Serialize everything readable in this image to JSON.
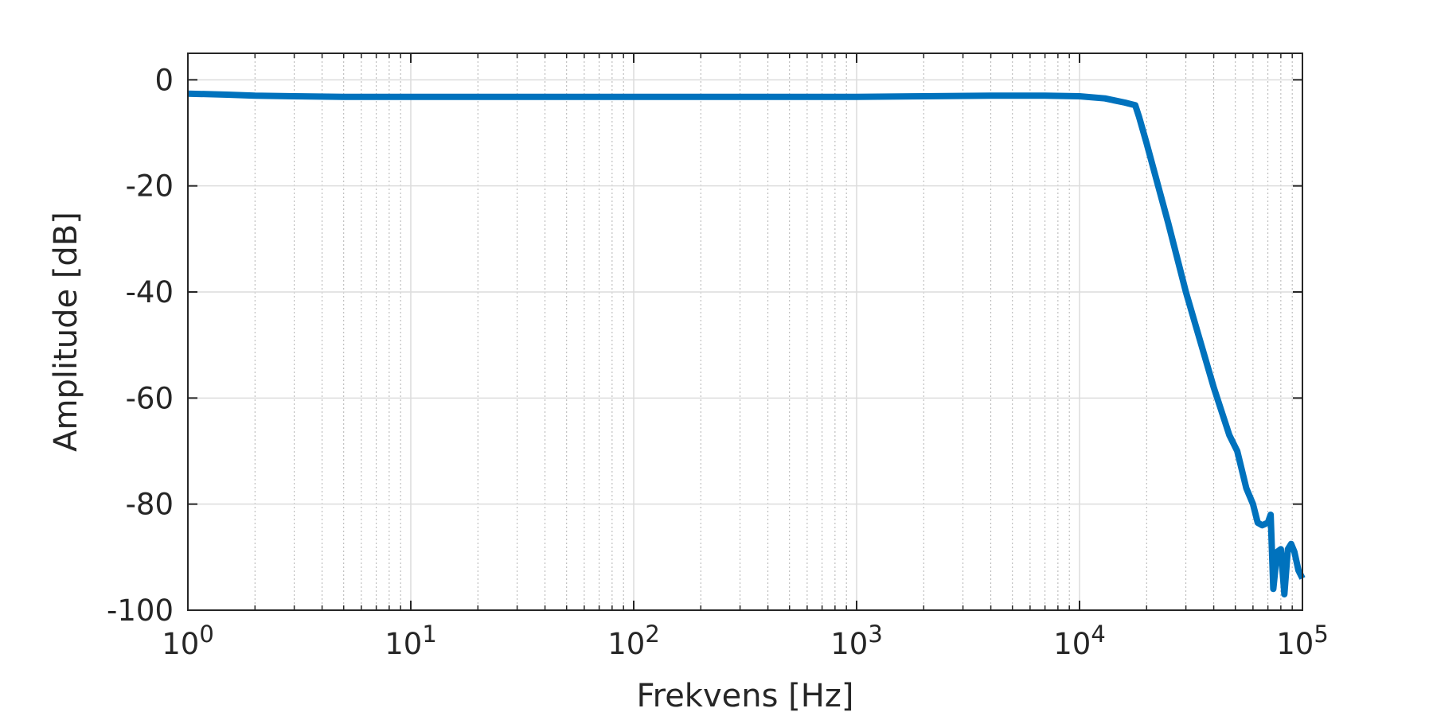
{
  "chart_data": {
    "type": "line",
    "title": "",
    "xlabel": "Frekvens [Hz]",
    "ylabel": "Amplitude [dB]",
    "xscale": "log",
    "xlim": [
      1,
      100000
    ],
    "ylim": [
      -100,
      5
    ],
    "grid": true,
    "minor_grid_x": true,
    "legend": "none",
    "line_color": "#0072BD",
    "x_ticks": [
      {
        "base": "10",
        "exp": "0"
      },
      {
        "base": "10",
        "exp": "1"
      },
      {
        "base": "10",
        "exp": "2"
      },
      {
        "base": "10",
        "exp": "3"
      },
      {
        "base": "10",
        "exp": "4"
      },
      {
        "base": "10",
        "exp": "5"
      }
    ],
    "y_ticks": [
      "0",
      "-20",
      "-40",
      "-60",
      "-80",
      "-100"
    ],
    "series": [
      {
        "x": [
          1,
          1.5,
          2,
          3,
          5,
          10,
          20,
          50,
          100,
          200,
          500,
          1000,
          2000,
          4000,
          7000,
          10000,
          13000,
          16000,
          17782,
          18500,
          20000,
          25000,
          30000,
          40000,
          47000,
          51000,
          56000,
          60000,
          63000,
          66000,
          70000,
          72000,
          74000,
          77000,
          80000,
          83000,
          86000,
          89000,
          92000,
          96000,
          100000
        ],
        "y": [
          -2.6,
          -2.8,
          -3.0,
          -3.1,
          -3.2,
          -3.2,
          -3.2,
          -3.2,
          -3.2,
          -3.2,
          -3.2,
          -3.2,
          -3.1,
          -3.0,
          -3.0,
          -3.1,
          -3.5,
          -4.3,
          -4.8,
          -7,
          -12,
          -27,
          -40,
          -58,
          -67,
          -70,
          -77,
          -80,
          -83.5,
          -84,
          -83.5,
          -82,
          -96,
          -89,
          -88.5,
          -97,
          -88.5,
          -87.5,
          -89,
          -92.5,
          -94
        ]
      }
    ]
  }
}
